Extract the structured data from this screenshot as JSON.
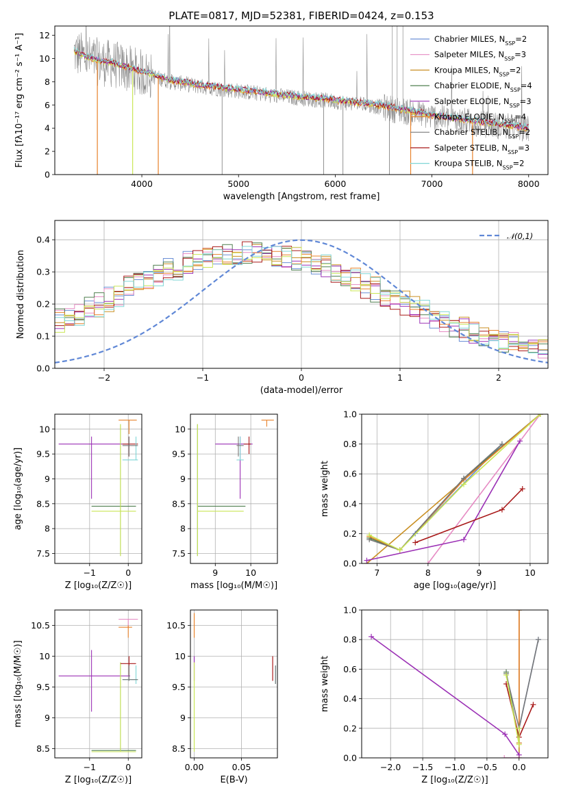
{
  "figure_title": "PLATE=0817, MJD=52381, FIBERID=0424, z=0.153",
  "colors": {
    "Chabrier MILES": "#6a8fd6",
    "Salpeter MILES": "#e68ac3",
    "Kroupa MILES": "#c98f22",
    "Chabrier ELODIE": "#4f7f4f",
    "Salpeter ELODIE": "#9b30b5",
    "Kroupa ELODIE": "#e8822a",
    "Chabrier STELIB": "#777777",
    "Salpeter STELIB": "#a81818",
    "Kroupa STELIB": "#c9e655",
    "Kroupa STELIB cyan": "#7fd6d6",
    "normal": "#5f87d6",
    "data": "#8a8a8a"
  },
  "chart_data": [
    {
      "type": "line",
      "id": "spectrum",
      "title": "PLATE=0817, MJD=52381, FIBERID=0424, z=0.153",
      "xlabel": "wavelength [Angstrom, rest frame]",
      "ylabel": "Flux [fλ10⁻¹⁷ erg cm⁻² s⁻¹ A⁻¹]",
      "xlim": [
        3100,
        8200
      ],
      "ylim": [
        0,
        12.8
      ],
      "xticks": [
        4000,
        5000,
        6000,
        7000,
        8000
      ],
      "yticks": [
        0,
        2,
        4,
        6,
        8,
        10,
        12
      ],
      "legend_loc": "upper right",
      "legend": [
        "Chabrier MILES, N_SSP=2",
        "Salpeter MILES, N_SSP=3",
        "Kroupa MILES, N_SSP=2",
        "Chabrier ELODIE, N_SSP=4",
        "Salpeter ELODIE, N_SSP=3",
        "Kroupa ELODIE, N_SSP=4",
        "Chabrier STELIB, N_SSP=2",
        "Salpeter STELIB, N_SSP=3",
        "Kroupa STELIB, N_SSP=2"
      ],
      "continuum_x": [
        3300,
        3500,
        3700,
        3900,
        4100,
        4300,
        4600,
        5000,
        5500,
        6000,
        6500,
        7000,
        7500,
        8000
      ],
      "continuum_y": [
        10.5,
        9.8,
        9.5,
        9.0,
        8.5,
        8.0,
        7.6,
        7.2,
        6.7,
        6.3,
        5.8,
        5.0,
        4.4,
        3.9
      ]
    },
    {
      "type": "line",
      "id": "residuals",
      "xlabel": "(data-model)/error",
      "ylabel": "Normed distribution",
      "xlim": [
        -2.5,
        2.5
      ],
      "ylim": [
        0,
        0.46
      ],
      "xticks": [
        -2,
        -1,
        0,
        1,
        2
      ],
      "yticks": [
        0.0,
        0.1,
        0.2,
        0.3,
        0.4
      ],
      "grid": true,
      "legend_loc": "upper right",
      "legend": [
        "𝒩(0,1)"
      ],
      "curve": "normal(0,1)"
    },
    {
      "type": "scatter",
      "id": "age_vs_Z",
      "xlabel": "Z [log₁₀(Z/Z☉)]",
      "ylabel": "age  [log₁₀(age/yr)]",
      "xlim": [
        -1.9,
        0.35
      ],
      "ylim": [
        7.3,
        10.3
      ],
      "xticks": [
        -1,
        0
      ],
      "yticks": [
        7.5,
        8.0,
        8.5,
        9.0,
        9.5,
        10.0
      ],
      "grid": true
    },
    {
      "type": "scatter",
      "id": "age_vs_mass",
      "xlabel": "mass [log₁₀(M/M☉)]",
      "xlim": [
        8.3,
        10.75
      ],
      "ylim": [
        7.3,
        10.3
      ],
      "xticks": [
        9,
        10
      ],
      "yticks": [
        7.5,
        8.0,
        8.5,
        9.0,
        9.5,
        10.0
      ],
      "grid": true
    },
    {
      "type": "line",
      "id": "mass_weight_vs_age",
      "xlabel": "age  [log₁₀(age/yr)]",
      "ylabel": "mass weight",
      "xlim": [
        6.7,
        10.35
      ],
      "ylim": [
        0,
        1
      ],
      "xticks": [
        7,
        8,
        9,
        10
      ],
      "yticks": [
        0.0,
        0.2,
        0.4,
        0.6,
        0.8,
        1.0
      ],
      "grid": true,
      "series": [
        {
          "name": "Chabrier MILES",
          "x": [
            7.75,
            9.45
          ],
          "y": [
            0.2,
            0.8
          ]
        },
        {
          "name": "Salpeter MILES",
          "x": [
            8.0,
            10.2
          ],
          "y": [
            0.0,
            1.0
          ]
        },
        {
          "name": "Kroupa MILES",
          "x": [
            6.8,
            10.2
          ],
          "y": [
            0.0,
            1.0
          ]
        },
        {
          "name": "Chabrier ELODIE",
          "x": [
            6.85,
            7.45,
            8.7,
            10.2
          ],
          "y": [
            0.17,
            0.09,
            0.57,
            1.0
          ]
        },
        {
          "name": "Salpeter ELODIE",
          "x": [
            6.8,
            8.7,
            9.8
          ],
          "y": [
            0.02,
            0.16,
            0.82
          ]
        },
        {
          "name": "Kroupa ELODIE",
          "x": [
            6.85,
            7.45,
            8.7,
            10.2
          ],
          "y": [
            0.18,
            0.09,
            0.56,
            1.0
          ]
        },
        {
          "name": "Chabrier STELIB",
          "x": [
            6.85,
            7.45,
            8.7,
            9.45
          ],
          "y": [
            0.16,
            0.09,
            0.57,
            0.8
          ]
        },
        {
          "name": "Salpeter STELIB",
          "x": [
            7.75,
            9.45,
            9.85
          ],
          "y": [
            0.14,
            0.36,
            0.5
          ]
        },
        {
          "name": "Kroupa STELIB",
          "x": [
            6.85,
            7.45,
            8.7,
            10.2
          ],
          "y": [
            0.19,
            0.09,
            0.53,
            1.0
          ]
        }
      ]
    },
    {
      "type": "scatter",
      "id": "mass_vs_Z",
      "xlabel": "Z [log₁₀(Z/Z☉)]",
      "ylabel": "mass [log₁₀(M/M☉)]",
      "xlim": [
        -1.9,
        0.35
      ],
      "ylim": [
        8.35,
        10.75
      ],
      "xticks": [
        -1,
        0
      ],
      "yticks": [
        8.5,
        9.0,
        9.5,
        10.0,
        10.5
      ],
      "grid": true
    },
    {
      "type": "scatter",
      "id": "mass_vs_EBV",
      "xlabel": "E(B-V)",
      "xlim": [
        -0.004,
        0.088
      ],
      "ylim": [
        8.35,
        10.75
      ],
      "xticks": [
        0.0,
        0.05
      ],
      "xticklabels": [
        "0.00",
        "0.05"
      ],
      "yticks": [
        8.5,
        9.0,
        9.5,
        10.0,
        10.5
      ],
      "grid": true
    },
    {
      "type": "line",
      "id": "mass_weight_vs_Z",
      "xlabel": "Z [log₁₀(Z/Z☉)]",
      "ylabel": "mass weight",
      "xlim": [
        -2.45,
        0.45
      ],
      "ylim": [
        0,
        1
      ],
      "xticks": [
        -2.0,
        -1.5,
        -1.0,
        -0.5,
        0.0
      ],
      "xticklabels": [
        "−2.0",
        "−1.5",
        "−1.0",
        "−0.5",
        "0.0"
      ],
      "yticks": [
        0.0,
        0.2,
        0.4,
        0.6,
        0.8,
        1.0
      ],
      "grid": true,
      "series": [
        {
          "name": "Chabrier MILES",
          "x": [
            0.0,
            0.3
          ],
          "y": [
            0.2,
            0.8
          ]
        },
        {
          "name": "Salpeter MILES",
          "x": [
            -0.23,
            0.0,
            0.0
          ],
          "y": [
            0.0,
            0.0,
            1.0
          ]
        },
        {
          "name": "Kroupa MILES",
          "x": [
            0.0,
            0.0
          ],
          "y": [
            0.0,
            1.0
          ]
        },
        {
          "name": "Chabrier ELODIE",
          "x": [
            -0.2,
            0.0,
            0.0
          ],
          "y": [
            0.58,
            0.1,
            1.0
          ]
        },
        {
          "name": "Salpeter ELODIE",
          "x": [
            -2.3,
            -0.22,
            0.0
          ],
          "y": [
            0.82,
            0.16,
            0.02
          ]
        },
        {
          "name": "Kroupa ELODIE",
          "x": [
            0.0,
            0.0
          ],
          "y": [
            0.1,
            1.0
          ]
        },
        {
          "name": "Chabrier STELIB",
          "x": [
            -0.2,
            0.0,
            0.3
          ],
          "y": [
            0.57,
            0.2,
            0.8
          ]
        },
        {
          "name": "Salpeter STELIB",
          "x": [
            -0.2,
            0.0,
            0.22
          ],
          "y": [
            0.5,
            0.14,
            0.36
          ]
        },
        {
          "name": "Kroupa STELIB",
          "x": [
            -0.2,
            0.0,
            0.0
          ],
          "y": [
            0.56,
            0.09,
            0.2
          ]
        }
      ]
    }
  ]
}
